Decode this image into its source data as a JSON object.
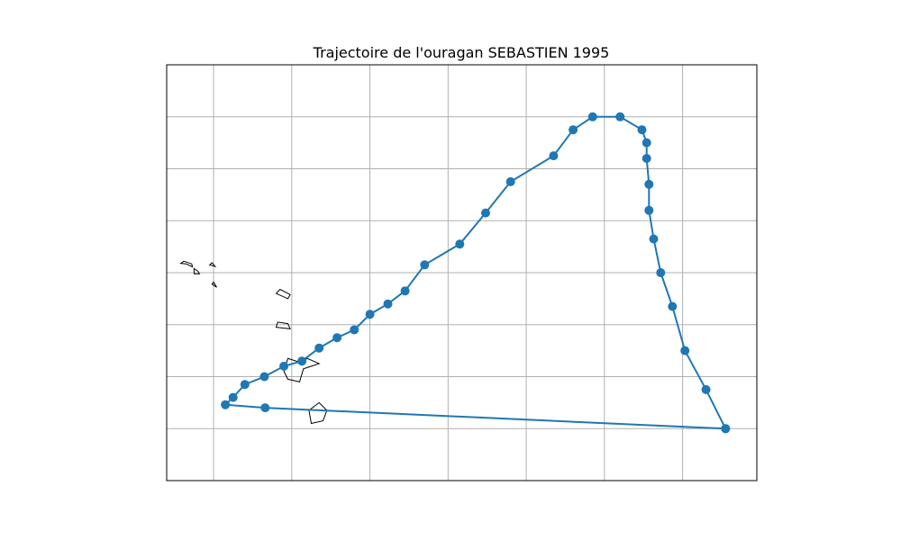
{
  "figure": {
    "title": "Trajectoire de l'ouragan SEBASTIEN 1995"
  },
  "chart_data": {
    "type": "line",
    "title": "Trajectoire de l'ouragan SEBASTIEN 1995",
    "xlabel": "",
    "ylabel": "",
    "projection": "PlateCarree",
    "xlim": [
      -63.3,
      -55.75
    ],
    "ylim": [
      14.1,
      22.1
    ],
    "grid": true,
    "grid_x": [
      -62.7,
      -61.7,
      -60.7,
      -59.7,
      -58.7,
      -57.7,
      -56.7
    ],
    "grid_y": [
      15.1,
      16.1,
      17.1,
      18.1,
      19.1,
      20.1,
      21.1
    ],
    "series": [
      {
        "color": "#1f77b4",
        "marker": "circle",
        "lon": [
          -56.15,
          -56.4,
          -56.67,
          -56.83,
          -56.98,
          -57.07,
          -57.13,
          -57.13,
          -57.16,
          -57.16,
          -57.22,
          -57.5,
          -57.85,
          -58.1,
          -58.35,
          -58.9,
          -59.22,
          -59.55,
          -60.0,
          -60.25,
          -60.47,
          -60.7,
          -60.9,
          -61.12,
          -61.35,
          -61.57,
          -61.8,
          -62.05,
          -62.3,
          -62.45,
          -62.55,
          -62.04,
          -56.15
        ],
        "lat": [
          15.1,
          15.85,
          16.6,
          17.45,
          18.1,
          18.75,
          19.3,
          19.8,
          20.3,
          20.6,
          20.85,
          21.1,
          21.1,
          20.85,
          20.35,
          19.85,
          19.25,
          18.65,
          18.25,
          17.75,
          17.5,
          17.3,
          17.0,
          16.85,
          16.65,
          16.4,
          16.3,
          16.1,
          15.95,
          15.7,
          15.56,
          15.5,
          15.1
        ]
      }
    ],
    "coastlines": [
      {
        "name": "Anguilla",
        "lon": [
          -63.05,
          -62.97,
          -62.98,
          -63.08,
          -63.12,
          -63.05
        ],
        "lat": [
          18.27,
          18.21,
          18.27,
          18.32,
          18.28,
          18.27
        ]
      },
      {
        "name": "Saint Martin",
        "lon": [
          -62.95,
          -62.9,
          -62.88,
          -62.95,
          -62.95
        ],
        "lat": [
          18.18,
          18.13,
          18.08,
          18.08,
          18.18
        ]
      },
      {
        "name": "Saint Barthelemy",
        "lon": [
          -62.75,
          -62.68,
          -62.72,
          -62.75
        ],
        "lat": [
          18.25,
          18.22,
          18.29,
          18.25
        ]
      },
      {
        "name": "Saba",
        "lon": [
          -62.72,
          -62.66,
          -62.7,
          -62.72
        ],
        "lat": [
          17.88,
          17.82,
          17.92,
          17.88
        ]
      },
      {
        "name": "Barbuda",
        "lon": [
          -61.9,
          -61.75,
          -61.72,
          -61.85,
          -61.9
        ],
        "lat": [
          17.7,
          17.6,
          17.68,
          17.78,
          17.7
        ]
      },
      {
        "name": "Antigua",
        "lon": [
          -61.9,
          -61.72,
          -61.75,
          -61.88,
          -61.9
        ],
        "lat": [
          17.05,
          17.02,
          17.12,
          17.15,
          17.05
        ]
      },
      {
        "name": "Guadeloupe",
        "lon": [
          -61.75,
          -61.6,
          -61.55,
          -61.45,
          -61.35,
          -61.5,
          -61.6,
          -61.75,
          -61.8,
          -61.75
        ],
        "lat": [
          16.05,
          16.0,
          16.25,
          16.3,
          16.35,
          16.45,
          16.38,
          16.45,
          16.2,
          16.05
        ]
      },
      {
        "name": "Dominica",
        "lon": [
          -61.45,
          -61.3,
          -61.25,
          -61.35,
          -61.48,
          -61.45
        ],
        "lat": [
          15.2,
          15.25,
          15.45,
          15.6,
          15.45,
          15.2
        ]
      }
    ]
  }
}
